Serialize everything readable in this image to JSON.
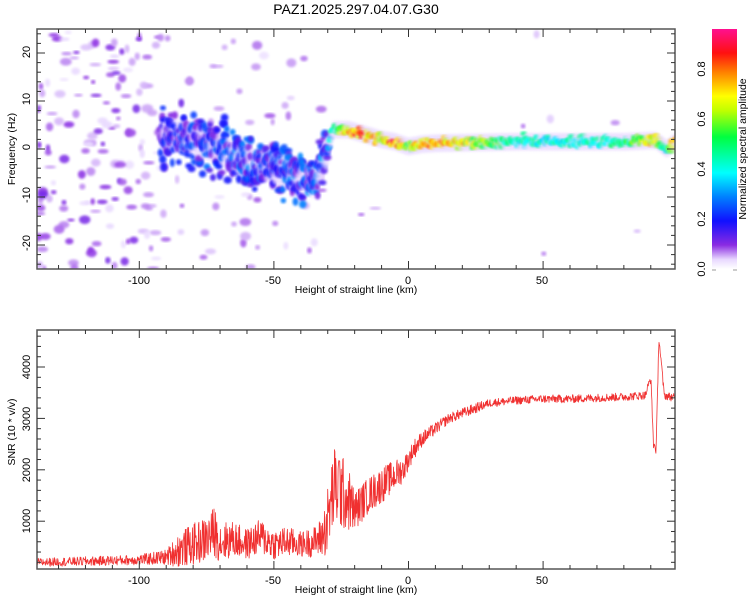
{
  "figure_title": "PAZ1.2025.297.04.07.G30",
  "chart_data": [
    {
      "type": "heatmap",
      "title": "PAZ1.2025.297.04.07.G30",
      "xlabel": "Height of straight line (km)",
      "ylabel": "Frequency (Hz)",
      "xlim": [
        -138,
        99
      ],
      "ylim": [
        -25,
        25
      ],
      "xticks": [
        -100,
        -50,
        0,
        50
      ],
      "xtick_labels": [
        "-100",
        "-50",
        "0",
        "50"
      ],
      "yticks": [
        -20,
        -10,
        0,
        10,
        20
      ],
      "ytick_labels": [
        "-20",
        "-10",
        "0",
        "10",
        "20"
      ],
      "colorbar": {
        "label": "Normalized spectral amplitude",
        "range": [
          0,
          0.96
        ],
        "ticks": [
          0.0,
          0.2,
          0.4,
          0.6,
          0.8
        ],
        "tick_labels": [
          "0.0",
          "0.2",
          "0.4",
          "0.6",
          "0.8"
        ],
        "colormap": "rainbow (white-violet-blue-cyan-green-yellow-red-magenta)"
      },
      "description": "Scattered low-amplitude noise for heights below -90 km; a band of moderate amplitude drifting from ~+3 Hz at -90 km to ~-7 Hz at -35 km; a narrow strong tone near +4 Hz at -28 km decaying to ~+1.5 Hz from 0 km to 99 km",
      "ridge": {
        "x": [
          -88,
          -80,
          -70,
          -60,
          -50,
          -40,
          -35,
          -30,
          -28,
          -22,
          -16,
          -10,
          -5,
          0,
          5,
          10,
          20,
          40,
          60,
          80,
          92,
          96,
          99
        ],
        "freq": [
          3,
          2,
          0,
          -3,
          -4,
          -6,
          -7,
          0,
          4,
          4,
          3,
          2,
          1.5,
          0.5,
          1,
          1.2,
          1.3,
          1.5,
          1.5,
          1.5,
          1.8,
          0,
          1.5
        ],
        "amplitude": [
          0.15,
          0.2,
          0.22,
          0.25,
          0.2,
          0.25,
          0.28,
          0.3,
          0.5,
          0.8,
          0.85,
          0.7,
          0.9,
          0.6,
          0.85,
          0.8,
          0.75,
          0.45,
          0.45,
          0.5,
          0.8,
          0.4,
          0.9
        ]
      }
    },
    {
      "type": "line",
      "title": "",
      "xlabel": "Height of straight line (km)",
      "ylabel": "SNR (10 * v/v)",
      "xlim": [
        -138,
        99
      ],
      "ylim": [
        70,
        4720
      ],
      "xticks": [
        -100,
        -50,
        0,
        50
      ],
      "xtick_labels": [
        "-100",
        "-50",
        "0",
        "50"
      ],
      "yticks": [
        1000,
        2000,
        3000,
        4000
      ],
      "ytick_labels": [
        "1000",
        "2000",
        "3000",
        "4000"
      ],
      "color": "#f03030",
      "series": [
        {
          "name": "SNR",
          "x": [
            -138,
            -120,
            -100,
            -90,
            -85,
            -80,
            -75,
            -72,
            -70,
            -65,
            -60,
            -55,
            -50,
            -45,
            -40,
            -35,
            -32,
            -30,
            -28,
            -26,
            -24,
            -22,
            -20,
            -15,
            -10,
            -5,
            -2,
            0,
            2,
            5,
            10,
            15,
            20,
            25,
            30,
            40,
            50,
            60,
            70,
            80,
            88,
            90,
            91,
            92,
            93,
            95,
            99
          ],
          "y": [
            200,
            220,
            250,
            300,
            450,
            550,
            650,
            800,
            600,
            650,
            550,
            700,
            550,
            600,
            550,
            600,
            700,
            1000,
            1600,
            1700,
            1500,
            1400,
            1200,
            1500,
            1700,
            1900,
            2000,
            2200,
            2400,
            2600,
            2800,
            3000,
            3100,
            3200,
            3300,
            3350,
            3380,
            3380,
            3400,
            3420,
            3450,
            3800,
            2500,
            2400,
            4600,
            3450,
            3400
          ],
          "noise_amplitude": [
            80,
            90,
            100,
            150,
            350,
            400,
            450,
            500,
            400,
            350,
            300,
            350,
            300,
            300,
            250,
            300,
            400,
            700,
            800,
            900,
            700,
            600,
            400,
            350,
            350,
            300,
            250,
            200,
            200,
            150,
            120,
            100,
            100,
            100,
            80,
            80,
            80,
            80,
            80,
            80,
            80,
            100,
            100,
            100,
            100,
            80,
            80
          ]
        }
      ]
    }
  ]
}
